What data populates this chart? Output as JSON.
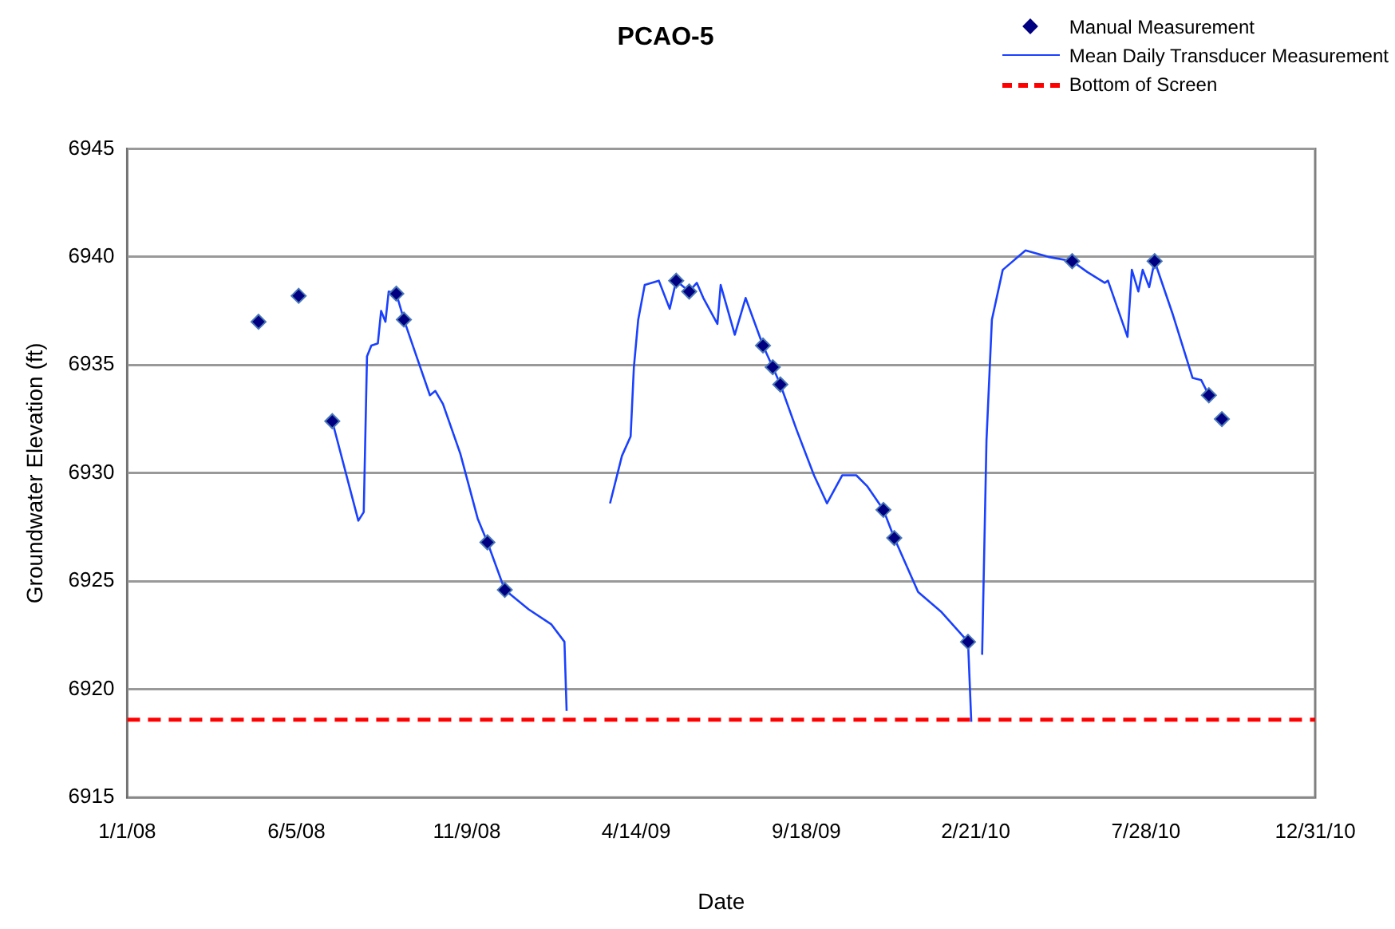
{
  "chart_data": {
    "type": "line",
    "title": "PCAO-5",
    "xlabel": "Date",
    "ylabel": "Groundwater Elevation (ft)",
    "xlim": [
      "2008-01-01",
      "2010-12-31"
    ],
    "xticks": [
      {
        "value": "2008-01-01",
        "label": "1/1/08"
      },
      {
        "value": "2008-06-05",
        "label": "6/5/08"
      },
      {
        "value": "2008-11-09",
        "label": "11/9/08"
      },
      {
        "value": "2009-04-14",
        "label": "4/14/09"
      },
      {
        "value": "2009-09-18",
        "label": "9/18/09"
      },
      {
        "value": "2010-02-21",
        "label": "2/21/10"
      },
      {
        "value": "2010-07-28",
        "label": "7/28/10"
      },
      {
        "value": "2010-12-31",
        "label": "12/31/10"
      }
    ],
    "ylim": [
      6915,
      6945
    ],
    "yticks": [
      6915,
      6920,
      6925,
      6930,
      6935,
      6940,
      6945
    ],
    "grid": "y",
    "legend": "top right",
    "series": [
      {
        "name": "Manual Measurement",
        "type": "scatter",
        "marker": "diamond",
        "color": "#000080",
        "x": [
          "2008-05-01",
          "2008-06-07",
          "2008-07-08",
          "2008-09-05",
          "2008-09-12",
          "2008-11-28",
          "2008-12-14",
          "2009-05-21",
          "2009-06-02",
          "2009-08-09",
          "2009-08-18",
          "2009-08-25",
          "2009-11-28",
          "2009-12-08",
          "2010-02-14",
          "2010-05-21",
          "2010-08-05",
          "2010-09-24",
          "2010-10-06"
        ],
        "values": [
          6937.0,
          6938.2,
          6932.4,
          6938.3,
          6937.1,
          6926.8,
          6924.6,
          6938.9,
          6938.4,
          6935.9,
          6934.9,
          6934.1,
          6928.3,
          6927.0,
          6922.2,
          6939.8,
          6939.8,
          6933.6,
          6932.5
        ]
      },
      {
        "name": "Mean Daily Transducer Measurement",
        "type": "line",
        "marker": "none",
        "line_style": "solid",
        "color": "#1a40ff",
        "x": [
          "2008-07-08",
          "2008-08-01",
          "2008-08-06",
          "2008-08-09",
          "2008-08-13",
          "2008-08-19",
          "2008-08-22",
          "2008-08-26",
          "2008-08-29",
          "2008-09-05",
          "2008-09-12",
          "2008-09-25",
          "2008-10-06",
          "2008-10-11",
          "2008-10-18",
          "2008-11-03",
          "2008-11-19",
          "2008-11-28",
          "2008-12-14",
          "2009-01-05",
          "2009-01-26",
          "2009-02-07",
          "2009-02-09",
          "2009-03-01",
          "2009-03-21",
          "2009-04-01",
          "2009-04-09",
          "2009-04-12",
          "2009-04-16",
          "2009-04-22",
          "2009-05-05",
          "2009-05-15",
          "2009-05-21",
          "2009-06-02",
          "2009-06-09",
          "2009-06-15",
          "2009-06-28",
          "2009-07-01",
          "2009-07-14",
          "2009-07-24",
          "2009-08-09",
          "2009-08-18",
          "2009-08-25",
          "2009-09-09",
          "2009-09-25",
          "2009-10-07",
          "2009-10-21",
          "2009-11-03",
          "2009-11-13",
          "2009-11-28",
          "2009-12-08",
          "2009-12-30",
          "2010-01-20",
          "2010-02-14",
          "2010-02-17",
          "2010-02-22",
          "2010-02-27",
          "2010-03-03",
          "2010-03-08",
          "2010-03-18",
          "2010-04-08",
          "2010-04-29",
          "2010-05-21",
          "2010-06-04",
          "2010-06-20",
          "2010-06-23",
          "2010-07-11",
          "2010-07-15",
          "2010-07-21",
          "2010-07-25",
          "2010-07-31",
          "2010-08-05",
          "2010-08-22",
          "2010-09-09",
          "2010-09-17",
          "2010-09-24"
        ],
        "values": [
          6932.4,
          6927.8,
          6928.2,
          6935.4,
          6935.9,
          6936.0,
          6937.5,
          6937.0,
          6938.4,
          6938.3,
          6937.1,
          6935.2,
          6933.6,
          6933.8,
          6933.2,
          6930.9,
          6927.9,
          6926.8,
          6924.6,
          6923.7,
          6923.0,
          6922.2,
          6919.0,
          null,
          6928.6,
          6930.8,
          6931.7,
          6934.9,
          6937.1,
          6938.7,
          6938.9,
          6937.6,
          6938.9,
          6938.4,
          6938.8,
          6938.1,
          6936.9,
          6938.7,
          6936.4,
          6938.1,
          6935.9,
          6934.9,
          6934.1,
          6932.0,
          6929.9,
          6928.6,
          6929.9,
          6929.9,
          6929.4,
          6928.3,
          6927.0,
          6924.5,
          6923.6,
          6922.2,
          6918.5,
          null,
          6921.6,
          6931.5,
          6937.1,
          6939.4,
          6940.3,
          6940.0,
          6939.8,
          6939.3,
          6938.8,
          6938.9,
          6936.3,
          6939.4,
          6938.4,
          6939.4,
          6938.6,
          6939.8,
          6937.3,
          6934.4,
          6934.3,
          6933.6
        ]
      }
    ],
    "ref_lines": [
      {
        "axis": "y",
        "value": 6918.6,
        "label": "Bottom of Screen",
        "color": "#ff0000",
        "line_style": "dashed"
      }
    ]
  }
}
